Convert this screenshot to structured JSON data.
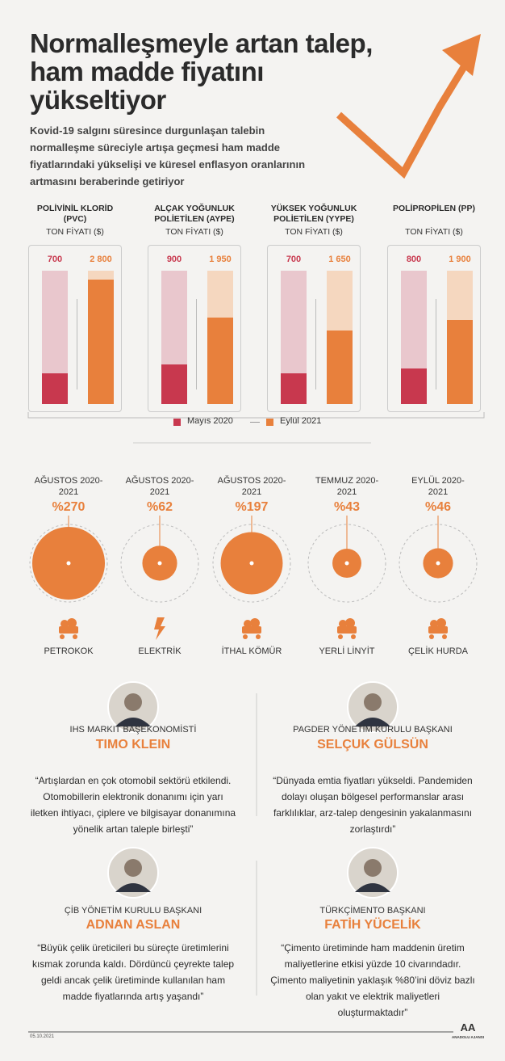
{
  "title_lines": [
    "Normalleşmeyle artan talep,",
    "ham madde fiyatını",
    "yükseltiyor"
  ],
  "subtitle": "Kovid-19 salgını süresince durgunlaşan talebin normalleşme süreciyle artışa geçmesi ham madde fiyatlarındaki yükselişi ve küresel enflasyon oranlarının artmasını beraberinde getiriyor",
  "chart_data": [
    {
      "type": "bar",
      "categories": [
        "POLİVİNİL KLORİD (PVC)",
        "ALÇAK YOĞUNLUK POLİETİLEN (AYPE)",
        "YÜKSEK YOĞUNLUK POLİETİLEN (YYPE)",
        "POLİPROPİLEN (PP)"
      ],
      "unit_label": "TON FİYATI ($)",
      "series": [
        {
          "name": "Mayıs 2020",
          "color": "#c8384e",
          "track_color": "#e9c7cd",
          "values": [
            700,
            900,
            700,
            800
          ]
        },
        {
          "name": "Eylül 2021",
          "color": "#e8803c",
          "track_color": "#f5d7bf",
          "values": [
            2800,
            1950,
            1650,
            1900
          ],
          "value_labels": [
            "2 800",
            "1 950",
            "1 650",
            "1 900"
          ]
        }
      ],
      "ylim": [
        0,
        3000
      ]
    },
    {
      "type": "bubble",
      "categories": [
        "PETROKOK",
        "ELEKTRİK",
        "İTHAL KÖMÜR",
        "YERLİ LİNYİT",
        "ÇELİK HURDA"
      ],
      "periods": [
        "AĞUSTOS 2020-2021",
        "AĞUSTOS 2020-2021",
        "AĞUSTOS 2020-2021",
        "TEMMUZ 2020-2021",
        "EYLÜL 2020-2021"
      ],
      "values": [
        270,
        62,
        197,
        43,
        46
      ],
      "value_labels": [
        "%270",
        "%62",
        "%197",
        "%43",
        "%46"
      ],
      "color": "#e8803c"
    }
  ],
  "people": [
    {
      "role": "IHS MARKIT BAŞEKONOMİSTİ",
      "name": "TIMO KLEIN",
      "quote": "“Artışlardan en çok otomobil sektörü etkilendi. Otomobillerin elektronik donanımı için yarı iletken ihtiyacı, çiplere ve bilgisayar donanımına yönelik artan taleple birleşti”"
    },
    {
      "role": "PAGDER YÖNETİM KURULU BAŞKANI",
      "name": "SELÇUK GÜLSÜN",
      "quote": "“Dünyada emtia fiyatları yükseldi. Pandemiden dolayı oluşan bölgesel performanslar arası farklılıklar, arz-talep dengesinin yakalanmasını zorlaştırdı”"
    },
    {
      "role": "ÇİB YÖNETİM KURULU BAŞKANI",
      "name": "ADNAN ASLAN",
      "quote": "“Büyük çelik üreticileri bu süreçte üretimlerini kısmak zorunda kaldı. Dördüncü çeyrekte talep geldi ancak çelik üretiminde kullanılan ham madde fiyatlarında artış yaşandı”"
    },
    {
      "role": "TÜRKÇİMENTO BAŞKANI",
      "name": "FATİH YÜCELİK",
      "quote": "“Çimento üretiminde ham maddenin üretim maliyetlerine etkisi yüzde 10 civarındadır. Çimento maliyetinin yaklaşık %80’ini döviz bazlı olan yakıt ve elektrik maliyetleri oluşturmaktadır”"
    }
  ],
  "footer_date": "05.10.2021",
  "logo": {
    "mark": "AA",
    "text": "ANADOLU AJANSI"
  }
}
